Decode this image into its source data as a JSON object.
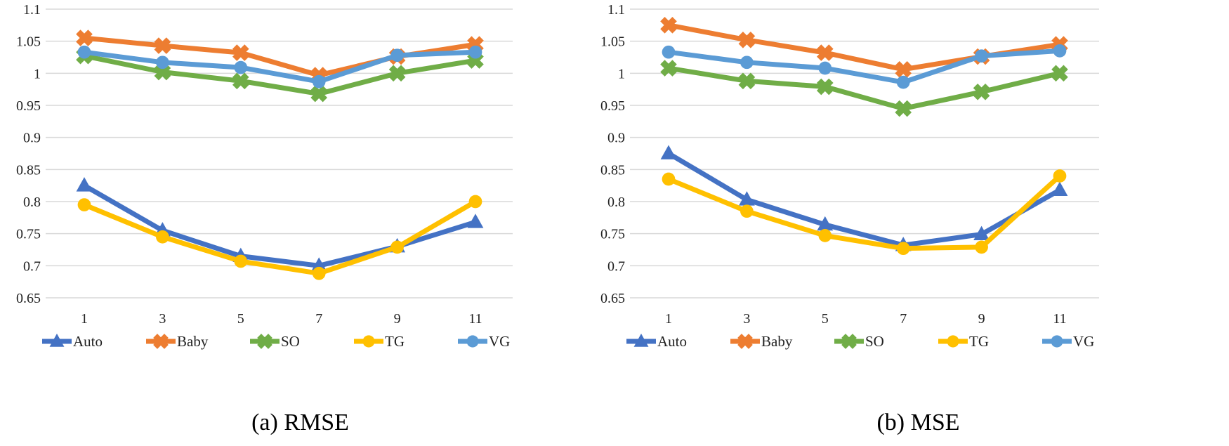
{
  "chart_data": [
    {
      "type": "line",
      "caption": "(a) RMSE",
      "x": [
        "1",
        "3",
        "5",
        "7",
        "9",
        "11"
      ],
      "ylim": [
        0.65,
        1.1
      ],
      "yticks": [
        "0.65",
        "0.7",
        "0.75",
        "0.8",
        "0.85",
        "0.9",
        "0.95",
        "1",
        "1.05",
        "1.1"
      ],
      "grid": true,
      "legend_position": "bottom",
      "series": [
        {
          "name": "Auto",
          "color": "#4472C4",
          "marker": "triangle",
          "values": [
            0.825,
            0.755,
            0.715,
            0.7,
            0.73,
            0.768
          ]
        },
        {
          "name": "Baby",
          "color": "#ED7D31",
          "marker": "x",
          "values": [
            1.055,
            1.043,
            1.032,
            0.997,
            1.026,
            1.045
          ]
        },
        {
          "name": "SO",
          "color": "#70AD47",
          "marker": "x",
          "values": [
            1.027,
            1.002,
            0.988,
            0.968,
            1.0,
            1.02
          ]
        },
        {
          "name": "TG",
          "color": "#FFC000",
          "marker": "circle",
          "values": [
            0.795,
            0.745,
            0.707,
            0.688,
            0.729,
            0.8
          ]
        },
        {
          "name": "VG",
          "color": "#5B9BD5",
          "marker": "circle",
          "values": [
            1.033,
            1.017,
            1.009,
            0.987,
            1.028,
            1.033
          ]
        }
      ]
    },
    {
      "type": "line",
      "caption": "(b) MSE",
      "x": [
        "1",
        "3",
        "5",
        "7",
        "9",
        "11"
      ],
      "ylim": [
        0.65,
        1.1
      ],
      "yticks": [
        "0.65",
        "0.7",
        "0.75",
        "0.8",
        "0.85",
        "0.9",
        "0.95",
        "1",
        "1.05",
        "1.1"
      ],
      "grid": true,
      "legend_position": "bottom",
      "series": [
        {
          "name": "Auto",
          "color": "#4472C4",
          "marker": "triangle",
          "values": [
            0.875,
            0.803,
            0.764,
            0.732,
            0.749,
            0.818
          ]
        },
        {
          "name": "Baby",
          "color": "#ED7D31",
          "marker": "x",
          "values": [
            1.075,
            1.052,
            1.032,
            1.006,
            1.026,
            1.045
          ]
        },
        {
          "name": "SO",
          "color": "#70AD47",
          "marker": "x",
          "values": [
            1.008,
            0.988,
            0.979,
            0.945,
            0.971,
            1.0
          ]
        },
        {
          "name": "TG",
          "color": "#FFC000",
          "marker": "circle",
          "values": [
            0.835,
            0.785,
            0.747,
            0.727,
            0.729,
            0.84
          ]
        },
        {
          "name": "VG",
          "color": "#5B9BD5",
          "marker": "circle",
          "values": [
            1.033,
            1.017,
            1.008,
            0.986,
            1.027,
            1.035
          ]
        }
      ]
    }
  ]
}
